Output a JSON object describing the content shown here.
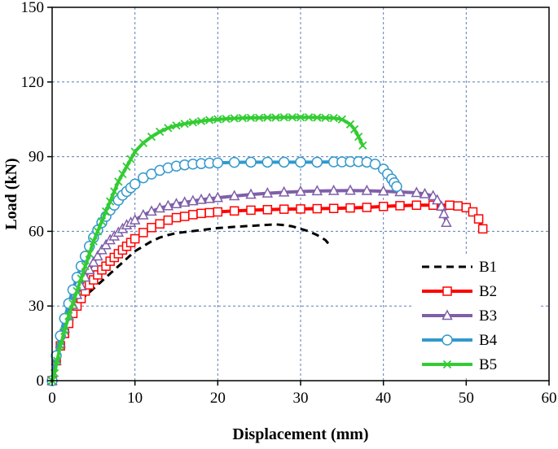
{
  "chart_data": {
    "type": "line",
    "title": "",
    "xlabel": "Displacement (mm)",
    "ylabel": "Load (kN)",
    "xlim": [
      0,
      60
    ],
    "ylim": [
      0,
      150
    ],
    "xticks": [
      "0",
      "10",
      "20",
      "30",
      "40",
      "50",
      "60"
    ],
    "yticks": [
      "0",
      "30",
      "60",
      "90",
      "120",
      "150"
    ],
    "grid": true,
    "legend_position": "bottom-right",
    "series": [
      {
        "name": "B1",
        "color": "#000000",
        "line_style": "dashed",
        "marker": "none",
        "x": [
          0,
          0.5,
          1,
          1.5,
          2,
          3,
          4,
          5,
          6,
          7,
          8,
          9,
          10,
          11,
          12,
          13,
          14,
          15,
          16,
          18,
          20,
          22,
          24,
          26,
          27,
          28,
          29,
          30,
          31,
          32,
          33,
          33.5
        ],
        "y": [
          0,
          8,
          14,
          19,
          24,
          30,
          34,
          37,
          40,
          43,
          46,
          49,
          52,
          54,
          56,
          57.5,
          58.5,
          59.3,
          59.7,
          60.5,
          61.3,
          61.8,
          62.2,
          62.6,
          62.8,
          62.5,
          62,
          61,
          60,
          58.5,
          56.5,
          54.5
        ]
      },
      {
        "name": "B2",
        "color": "#ff0000",
        "line_style": "solid",
        "marker": "square",
        "x": [
          0,
          0.5,
          1,
          1.5,
          2,
          2.5,
          3,
          3.5,
          4,
          4.5,
          5,
          5.5,
          6,
          6.5,
          7,
          7.5,
          8,
          8.5,
          9,
          9.5,
          10,
          11,
          12,
          13,
          14,
          15,
          16,
          17,
          18,
          19,
          20,
          22,
          24,
          26,
          28,
          30,
          32,
          34,
          36,
          38,
          40,
          42,
          44,
          46,
          48,
          49,
          50,
          50.8,
          51.5,
          52
        ],
        "y": [
          0,
          8,
          14,
          19,
          23,
          27,
          30,
          33,
          36,
          38.5,
          40.5,
          42.5,
          44.5,
          46,
          48,
          49.5,
          51,
          52.5,
          54,
          55.5,
          57,
          59.5,
          61.5,
          63,
          64.5,
          65.5,
          66,
          66.7,
          67.2,
          67.5,
          67.8,
          68.2,
          68.5,
          68.7,
          68.9,
          69,
          69.1,
          69.2,
          69.4,
          69.6,
          70,
          70.3,
          70.5,
          70.5,
          70.5,
          70.2,
          69.5,
          67.8,
          65,
          61
        ]
      },
      {
        "name": "B3",
        "color": "#7f5fa8",
        "line_style": "solid",
        "marker": "triangle",
        "x": [
          0,
          0.5,
          1,
          1.5,
          2,
          2.5,
          3,
          3.5,
          4,
          4.5,
          5,
          5.5,
          6,
          6.5,
          7,
          7.5,
          8,
          8.5,
          9,
          9.5,
          10,
          11,
          12,
          13,
          14,
          15,
          16,
          17,
          18,
          19,
          20,
          22,
          24,
          26,
          28,
          30,
          32,
          34,
          36,
          38,
          40,
          42,
          44,
          45,
          46,
          46.5,
          47,
          47.3,
          47.6
        ],
        "y": [
          0,
          8,
          15,
          21,
          26,
          30.5,
          34.5,
          38,
          41.5,
          44.5,
          47.5,
          50,
          52.5,
          54.5,
          56.5,
          58,
          59.5,
          61,
          62.5,
          63.5,
          64.5,
          66.5,
          68,
          69.3,
          70.2,
          71,
          71.6,
          72.2,
          72.7,
          73.1,
          73.5,
          74.2,
          74.8,
          75.3,
          75.7,
          76,
          76.2,
          76.3,
          76.4,
          76.3,
          76.1,
          75.8,
          75.5,
          75,
          74.2,
          72.5,
          70,
          67,
          63.5
        ]
      },
      {
        "name": "B4",
        "color": "#3399cc",
        "line_style": "solid",
        "marker": "circle",
        "x": [
          0,
          0.5,
          1,
          1.5,
          2,
          2.5,
          3,
          3.5,
          4,
          4.5,
          5,
          5.5,
          6,
          6.5,
          7,
          7.5,
          8,
          8.5,
          9,
          9.5,
          10,
          11,
          12,
          13,
          14,
          15,
          16,
          17,
          18,
          19,
          20,
          22,
          24,
          26,
          28,
          30,
          32,
          34,
          35,
          36,
          37,
          38,
          39,
          40,
          40.5,
          41,
          41.3,
          41.6
        ],
        "y": [
          0,
          10,
          18,
          25,
          31,
          36.5,
          41.5,
          46,
          50,
          54,
          57.5,
          60.5,
          63.5,
          66,
          68.5,
          70.5,
          72.5,
          74.5,
          76,
          77.5,
          79,
          81.5,
          83,
          84.5,
          85.5,
          86.2,
          86.7,
          87,
          87.2,
          87.4,
          87.5,
          87.7,
          87.8,
          87.8,
          87.8,
          87.8,
          87.8,
          87.9,
          87.9,
          88,
          88,
          87.8,
          87,
          85,
          83,
          81,
          79.5,
          78
        ]
      },
      {
        "name": "B5",
        "color": "#33cc33",
        "line_style": "solid",
        "marker": "x",
        "x": [
          0,
          0.3,
          0.6,
          1,
          1.5,
          2,
          2.5,
          3,
          3.5,
          4,
          4.5,
          5,
          5.5,
          6,
          6.5,
          7,
          7.5,
          8,
          8.5,
          9,
          9.5,
          10,
          11,
          12,
          13,
          14,
          15,
          16,
          17,
          18,
          19,
          20,
          21,
          22,
          23,
          24,
          25,
          26,
          27,
          28,
          29,
          30,
          31,
          32,
          33,
          34,
          35,
          36,
          36.5,
          37,
          37.5
        ],
        "y": [
          0,
          3,
          8,
          14,
          20,
          26,
          31,
          36,
          41,
          46,
          51,
          56,
          60,
          64,
          68,
          72,
          76,
          80,
          83,
          86,
          89,
          92,
          95.5,
          98,
          100,
          101.5,
          102.5,
          103.2,
          103.8,
          104.3,
          104.7,
          105,
          105.2,
          105.4,
          105.5,
          105.6,
          105.6,
          105.7,
          105.7,
          105.8,
          105.8,
          105.8,
          105.8,
          105.7,
          105.6,
          105.5,
          105,
          103,
          101,
          98,
          94.5
        ]
      }
    ]
  }
}
